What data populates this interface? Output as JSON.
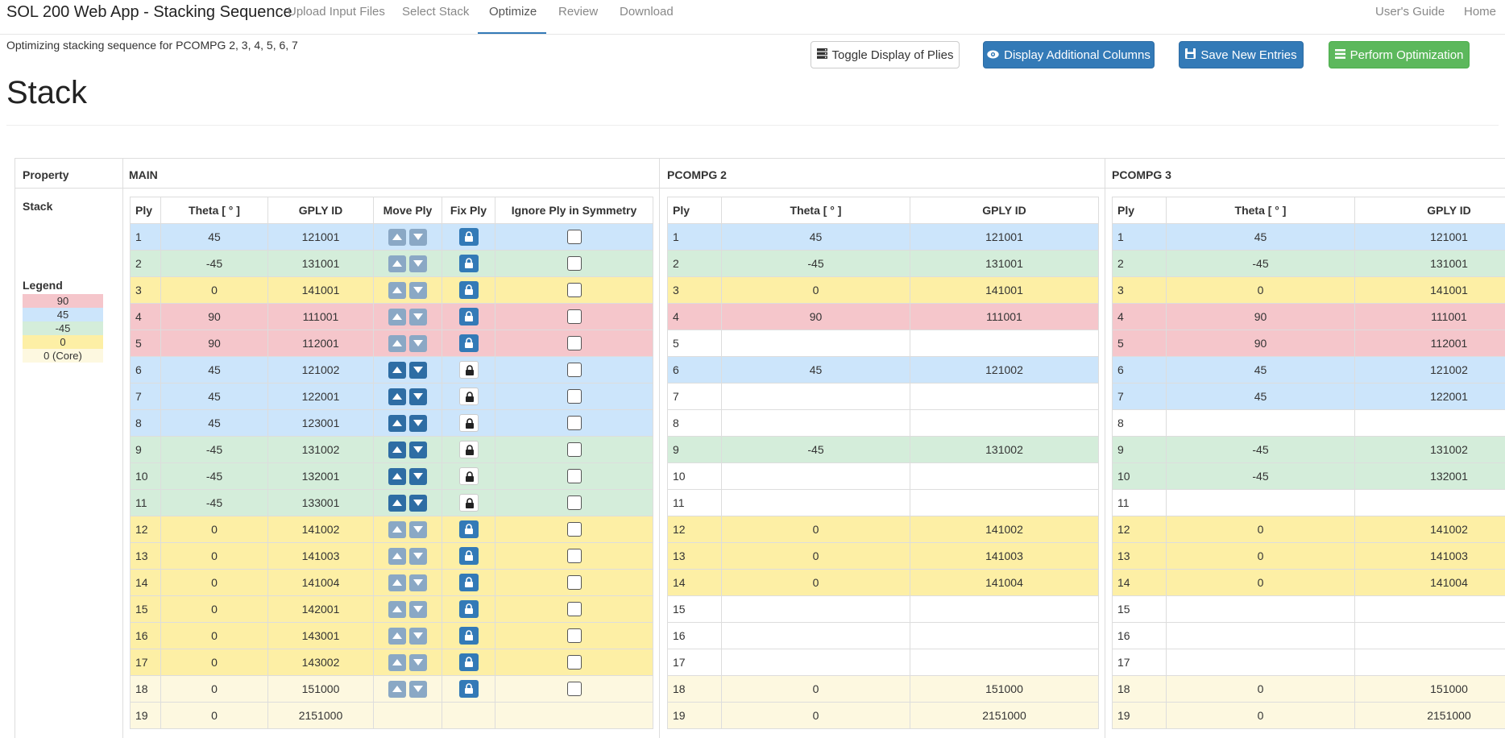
{
  "navbar": {
    "brand": "SOL 200 Web App - Stacking Sequence",
    "items": [
      {
        "label": "Upload Input Files"
      },
      {
        "label": "Select Stack"
      },
      {
        "label": "Optimize"
      },
      {
        "label": "Review"
      },
      {
        "label": "Download"
      }
    ],
    "active_item": "Optimize",
    "right_items": [
      {
        "label": "User's Guide"
      },
      {
        "label": "Home"
      }
    ]
  },
  "subtitle": "Optimizing stacking sequence for PCOMPG 2, 3, 4, 5, 6, 7",
  "buttons": {
    "toggle_plies": "Toggle Display of Plies",
    "additional_columns": "Display Additional Columns",
    "save_entries": "Save New Entries",
    "perform_optimization": "Perform Optimization"
  },
  "icons": {
    "toggle_plies": "server-icon",
    "additional_columns": "eye-icon",
    "save_entries": "floppy-disk-icon",
    "perform_optimization": "list-icon",
    "move_up": "triangle-up-icon",
    "move_down": "triangle-down-icon",
    "fix_ply": "lock-icon"
  },
  "page_title": "Stack",
  "outer_headers": {
    "property": "Property",
    "main": "MAIN",
    "pcompg2": "PCOMPG 2",
    "pcompg3": "PCOMPG 3"
  },
  "property": {
    "stack_label": "Stack",
    "legend_title": "Legend",
    "legend": [
      {
        "label": "90",
        "color": "#f5c6cb"
      },
      {
        "label": "45",
        "color": "#cce5fb"
      },
      {
        "label": "-45",
        "color": "#d4edda"
      },
      {
        "label": "0",
        "color": "#fdefa5"
      },
      {
        "label": "0 (Core)",
        "color": "#fdf8e0"
      }
    ]
  },
  "colors": {
    "90": "#f5c6cb",
    "45": "#cce5fb",
    "-45": "#d4edda",
    "0": "#fdefa5",
    "core": "#fdf8e0",
    "empty": "#ffffff"
  },
  "main_table": {
    "headers": [
      "Ply",
      "Theta [ ° ]",
      "GPLY ID",
      "Move Ply",
      "Fix Ply",
      "Ignore Ply in Symmetry"
    ],
    "rows": [
      {
        "ply": "1",
        "theta": "45",
        "gply": "121001",
        "cat": "45",
        "fixed": true,
        "controls": true
      },
      {
        "ply": "2",
        "theta": "-45",
        "gply": "131001",
        "cat": "-45",
        "fixed": true,
        "controls": true
      },
      {
        "ply": "3",
        "theta": "0",
        "gply": "141001",
        "cat": "0",
        "fixed": true,
        "controls": true
      },
      {
        "ply": "4",
        "theta": "90",
        "gply": "111001",
        "cat": "90",
        "fixed": true,
        "controls": true
      },
      {
        "ply": "5",
        "theta": "90",
        "gply": "112001",
        "cat": "90",
        "fixed": true,
        "controls": true
      },
      {
        "ply": "6",
        "theta": "45",
        "gply": "121002",
        "cat": "45",
        "fixed": false,
        "controls": true
      },
      {
        "ply": "7",
        "theta": "45",
        "gply": "122001",
        "cat": "45",
        "fixed": false,
        "controls": true
      },
      {
        "ply": "8",
        "theta": "45",
        "gply": "123001",
        "cat": "45",
        "fixed": false,
        "controls": true
      },
      {
        "ply": "9",
        "theta": "-45",
        "gply": "131002",
        "cat": "-45",
        "fixed": false,
        "controls": true
      },
      {
        "ply": "10",
        "theta": "-45",
        "gply": "132001",
        "cat": "-45",
        "fixed": false,
        "controls": true
      },
      {
        "ply": "11",
        "theta": "-45",
        "gply": "133001",
        "cat": "-45",
        "fixed": false,
        "controls": true
      },
      {
        "ply": "12",
        "theta": "0",
        "gply": "141002",
        "cat": "0",
        "fixed": true,
        "controls": true
      },
      {
        "ply": "13",
        "theta": "0",
        "gply": "141003",
        "cat": "0",
        "fixed": true,
        "controls": true
      },
      {
        "ply": "14",
        "theta": "0",
        "gply": "141004",
        "cat": "0",
        "fixed": true,
        "controls": true
      },
      {
        "ply": "15",
        "theta": "0",
        "gply": "142001",
        "cat": "0",
        "fixed": true,
        "controls": true
      },
      {
        "ply": "16",
        "theta": "0",
        "gply": "143001",
        "cat": "0",
        "fixed": true,
        "controls": true
      },
      {
        "ply": "17",
        "theta": "0",
        "gply": "143002",
        "cat": "0",
        "fixed": true,
        "controls": true
      },
      {
        "ply": "18",
        "theta": "0",
        "gply": "151000",
        "cat": "core",
        "fixed": true,
        "controls": true
      },
      {
        "ply": "19",
        "theta": "0",
        "gply": "2151000",
        "cat": "core",
        "fixed": false,
        "controls": false
      }
    ]
  },
  "pcompg2_table": {
    "headers": [
      "Ply",
      "Theta [ ° ]",
      "GPLY ID"
    ],
    "rows": [
      {
        "ply": "1",
        "theta": "45",
        "gply": "121001",
        "cat": "45"
      },
      {
        "ply": "2",
        "theta": "-45",
        "gply": "131001",
        "cat": "-45"
      },
      {
        "ply": "3",
        "theta": "0",
        "gply": "141001",
        "cat": "0"
      },
      {
        "ply": "4",
        "theta": "90",
        "gply": "111001",
        "cat": "90"
      },
      {
        "ply": "5",
        "theta": "",
        "gply": "",
        "cat": "empty"
      },
      {
        "ply": "6",
        "theta": "45",
        "gply": "121002",
        "cat": "45"
      },
      {
        "ply": "7",
        "theta": "",
        "gply": "",
        "cat": "empty"
      },
      {
        "ply": "8",
        "theta": "",
        "gply": "",
        "cat": "empty"
      },
      {
        "ply": "9",
        "theta": "-45",
        "gply": "131002",
        "cat": "-45"
      },
      {
        "ply": "10",
        "theta": "",
        "gply": "",
        "cat": "empty"
      },
      {
        "ply": "11",
        "theta": "",
        "gply": "",
        "cat": "empty"
      },
      {
        "ply": "12",
        "theta": "0",
        "gply": "141002",
        "cat": "0"
      },
      {
        "ply": "13",
        "theta": "0",
        "gply": "141003",
        "cat": "0"
      },
      {
        "ply": "14",
        "theta": "0",
        "gply": "141004",
        "cat": "0"
      },
      {
        "ply": "15",
        "theta": "",
        "gply": "",
        "cat": "empty"
      },
      {
        "ply": "16",
        "theta": "",
        "gply": "",
        "cat": "empty"
      },
      {
        "ply": "17",
        "theta": "",
        "gply": "",
        "cat": "empty"
      },
      {
        "ply": "18",
        "theta": "0",
        "gply": "151000",
        "cat": "core"
      },
      {
        "ply": "19",
        "theta": "0",
        "gply": "2151000",
        "cat": "core"
      }
    ]
  },
  "pcompg3_table": {
    "headers": [
      "Ply",
      "Theta [ ° ]",
      "GPLY ID"
    ],
    "rows": [
      {
        "ply": "1",
        "theta": "45",
        "gply": "121001",
        "cat": "45"
      },
      {
        "ply": "2",
        "theta": "-45",
        "gply": "131001",
        "cat": "-45"
      },
      {
        "ply": "3",
        "theta": "0",
        "gply": "141001",
        "cat": "0"
      },
      {
        "ply": "4",
        "theta": "90",
        "gply": "111001",
        "cat": "90"
      },
      {
        "ply": "5",
        "theta": "90",
        "gply": "112001",
        "cat": "90"
      },
      {
        "ply": "6",
        "theta": "45",
        "gply": "121002",
        "cat": "45"
      },
      {
        "ply": "7",
        "theta": "45",
        "gply": "122001",
        "cat": "45"
      },
      {
        "ply": "8",
        "theta": "",
        "gply": "",
        "cat": "empty"
      },
      {
        "ply": "9",
        "theta": "-45",
        "gply": "131002",
        "cat": "-45"
      },
      {
        "ply": "10",
        "theta": "-45",
        "gply": "132001",
        "cat": "-45"
      },
      {
        "ply": "11",
        "theta": "",
        "gply": "",
        "cat": "empty"
      },
      {
        "ply": "12",
        "theta": "0",
        "gply": "141002",
        "cat": "0"
      },
      {
        "ply": "13",
        "theta": "0",
        "gply": "141003",
        "cat": "0"
      },
      {
        "ply": "14",
        "theta": "0",
        "gply": "141004",
        "cat": "0"
      },
      {
        "ply": "15",
        "theta": "",
        "gply": "",
        "cat": "empty"
      },
      {
        "ply": "16",
        "theta": "",
        "gply": "",
        "cat": "empty"
      },
      {
        "ply": "17",
        "theta": "",
        "gply": "",
        "cat": "empty"
      },
      {
        "ply": "18",
        "theta": "0",
        "gply": "151000",
        "cat": "core"
      },
      {
        "ply": "19",
        "theta": "0",
        "gply": "2151000",
        "cat": "core"
      }
    ]
  }
}
